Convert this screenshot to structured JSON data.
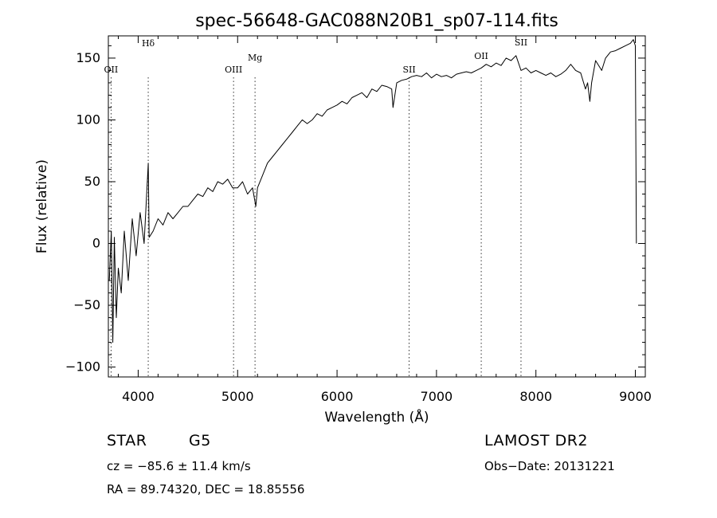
{
  "chart_data": {
    "type": "line",
    "title": "spec-56648-GAC088N20B1_sp07-114.fits",
    "xlabel": "Wavelength (Å)",
    "ylabel": "Flux (relative)",
    "xlim": [
      3700,
      9100
    ],
    "ylim": [
      -108,
      168
    ],
    "xticks": [
      4000,
      5000,
      6000,
      7000,
      8000,
      9000
    ],
    "yticks": [
      -100,
      -50,
      0,
      50,
      100,
      150
    ],
    "grid": false,
    "series": [
      {
        "color": "#000000",
        "x": [
          3710,
          3730,
          3745,
          3760,
          3780,
          3800,
          3830,
          3860,
          3900,
          3940,
          3980,
          4020,
          4060,
          4101,
          4110,
          4150,
          4200,
          4250,
          4300,
          4350,
          4400,
          4450,
          4500,
          4550,
          4600,
          4650,
          4700,
          4750,
          4800,
          4850,
          4900,
          4950,
          5000,
          5050,
          5100,
          5150,
          5183,
          5200,
          5250,
          5300,
          5350,
          5400,
          5450,
          5500,
          5550,
          5600,
          5650,
          5700,
          5750,
          5800,
          5850,
          5900,
          5950,
          6000,
          6050,
          6100,
          6150,
          6200,
          6250,
          6300,
          6350,
          6400,
          6450,
          6500,
          6550,
          6563,
          6600,
          6650,
          6700,
          6750,
          6800,
          6850,
          6900,
          6950,
          7000,
          7050,
          7100,
          7150,
          7200,
          7250,
          7300,
          7350,
          7400,
          7450,
          7500,
          7550,
          7600,
          7650,
          7700,
          7750,
          7800,
          7850,
          7900,
          7950,
          8000,
          8050,
          8100,
          8150,
          8200,
          8250,
          8300,
          8350,
          8400,
          8450,
          8498,
          8520,
          8542,
          8560,
          8600,
          8662,
          8700,
          8750,
          8800,
          8850,
          8900,
          8950,
          8980,
          9000,
          9010
        ],
        "y": [
          -30,
          10,
          -80,
          5,
          -60,
          -20,
          -40,
          10,
          -30,
          20,
          -10,
          25,
          0,
          65,
          5,
          10,
          20,
          15,
          25,
          20,
          25,
          30,
          30,
          35,
          40,
          38,
          45,
          42,
          50,
          48,
          52,
          45,
          45,
          50,
          40,
          45,
          30,
          45,
          55,
          65,
          70,
          75,
          80,
          85,
          90,
          95,
          100,
          97,
          100,
          105,
          103,
          108,
          110,
          112,
          115,
          113,
          118,
          120,
          122,
          118,
          125,
          123,
          128,
          127,
          125,
          110,
          130,
          132,
          133,
          135,
          136,
          135,
          138,
          134,
          137,
          135,
          136,
          134,
          137,
          138,
          139,
          138,
          140,
          142,
          145,
          143,
          146,
          144,
          150,
          148,
          152,
          140,
          142,
          138,
          140,
          138,
          136,
          138,
          135,
          137,
          140,
          145,
          140,
          138,
          125,
          130,
          115,
          130,
          148,
          140,
          150,
          155,
          156,
          158,
          160,
          162,
          165,
          160,
          0
        ]
      }
    ],
    "line_markers": [
      {
        "label": "OII",
        "x": 3727
      },
      {
        "label": "Hδ",
        "x": 4101
      },
      {
        "label": "OIII",
        "x": 4959
      },
      {
        "label": "Mg",
        "x": 5175
      },
      {
        "label": "SII",
        "x": 6725
      },
      {
        "label": "OII",
        "x": 7450
      },
      {
        "label": "SII",
        "x": 7850
      }
    ]
  },
  "info": {
    "object_class": "STAR",
    "subclass": "G5",
    "survey": "LAMOST DR2",
    "velocity": "cz = −85.6 ± 11.4 km/s",
    "obs_date": "Obs−Date: 20131221",
    "coords": "RA =  89.74320, DEC =  18.85556"
  }
}
